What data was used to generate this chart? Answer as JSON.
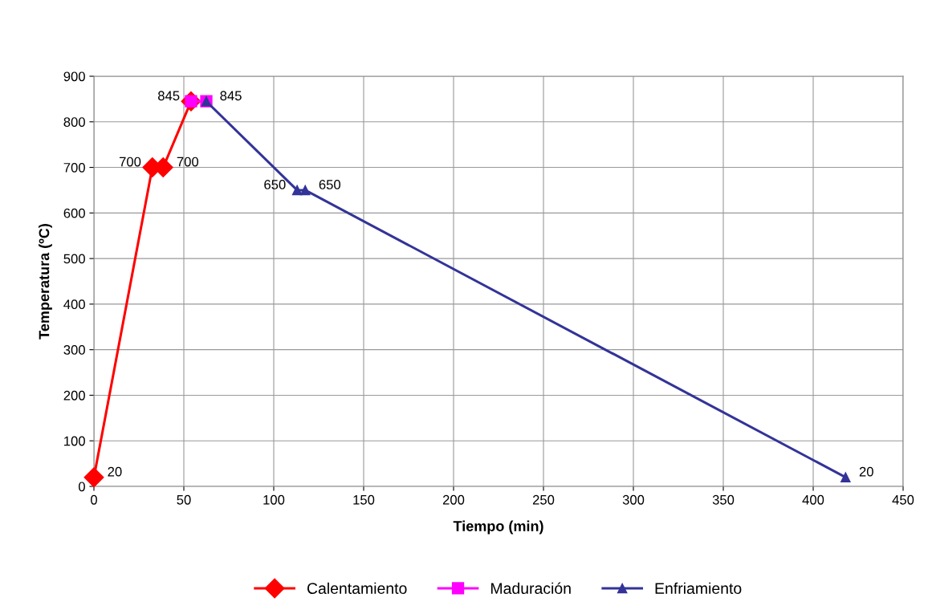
{
  "chart_data": {
    "type": "line",
    "xlabel": "Tiempo (min)",
    "ylabel": "Temperatura (ºC)",
    "xlim": [
      0,
      450
    ],
    "xticks": [
      0,
      50,
      100,
      150,
      200,
      250,
      300,
      350,
      400,
      450
    ],
    "ylim": [
      0,
      900
    ],
    "yticks": [
      0,
      100,
      200,
      300,
      400,
      500,
      600,
      700,
      800,
      900
    ],
    "grid": true,
    "legend": "bottom",
    "series": [
      {
        "name": "Calentamiento",
        "color": "#ff0000",
        "marker": "diamond",
        "x": [
          0,
          32.5,
          38.5,
          54
        ],
        "values": [
          20,
          700,
          700,
          845
        ],
        "value_labels": [
          "20",
          "700",
          "700",
          null
        ]
      },
      {
        "name": "Maduración",
        "color": "#ff00ff",
        "marker": "square",
        "x": [
          54,
          62.5
        ],
        "values": [
          845,
          845
        ],
        "value_labels": [
          "845",
          null
        ]
      },
      {
        "name": "Enfriamiento",
        "color": "#333399",
        "marker": "triangle",
        "x": [
          62.5,
          113,
          117.5,
          418
        ],
        "values": [
          845,
          650,
          650,
          20
        ],
        "value_labels": [
          "845",
          "650",
          "650",
          "20"
        ]
      }
    ]
  }
}
